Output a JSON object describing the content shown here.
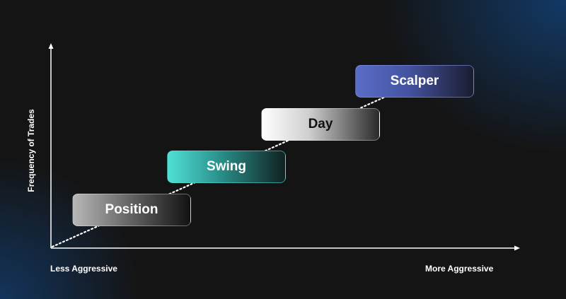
{
  "axes": {
    "y_label": "Frequency of Trades",
    "x_label_left": "Less Aggressive",
    "x_label_right": "More Aggressive"
  },
  "stages": [
    {
      "label": "Position"
    },
    {
      "label": "Swing"
    },
    {
      "label": "Day"
    },
    {
      "label": "Scalper"
    }
  ],
  "colors": {
    "swing": "#4fe0d6",
    "scalper": "#5a6ec8",
    "day": "#ffffff",
    "position": "#b8b8b8"
  }
}
